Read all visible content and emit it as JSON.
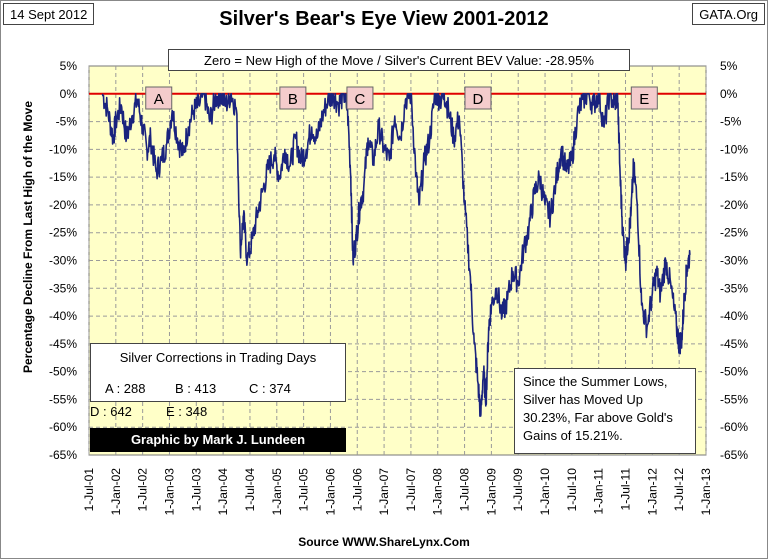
{
  "header": {
    "date": "14 Sept 2012",
    "site": "GATA.Org",
    "title": "Silver's Bear's Eye View 2001-2012",
    "subtitle": "Zero = New High of the Move / Silver's Current BEV Value: -28.95%"
  },
  "footer": {
    "source": "Source WWW.ShareLynx.Com"
  },
  "corrections": {
    "title": "Silver Corrections in Trading Days",
    "a": "A : 288",
    "b": "B : 413",
    "c": "C : 374",
    "d": "D : 642",
    "e": "E : 348",
    "credit": "Graphic by Mark J. Lundeen"
  },
  "note": {
    "line1": "Since the Summer Lows,",
    "line2": "Silver has Moved Up",
    "line3": "30.23%, Far above Gold's",
    "line4": "Gains of 15.21%."
  },
  "colors": {
    "plot_bg": "#ffffc8",
    "line": "#1a237e",
    "zero_line": "#e00000",
    "label_box": "#f4cccc"
  },
  "chart_data": {
    "type": "line",
    "title": "Silver's Bear's Eye View 2001-2012",
    "xlabel": "",
    "ylabel": "Percentage Decline From Last High of the Move",
    "ylim": [
      -65,
      5
    ],
    "y_ticks": [
      "5%",
      "0%",
      "-5%",
      "-10%",
      "-15%",
      "-20%",
      "-25%",
      "-30%",
      "-35%",
      "-40%",
      "-45%",
      "-50%",
      "-55%",
      "-60%",
      "-65%"
    ],
    "x_ticks": [
      "1-Jul-01",
      "1-Jan-02",
      "1-Jul-02",
      "1-Jan-03",
      "1-Jul-03",
      "1-Jan-04",
      "1-Jul-04",
      "1-Jan-05",
      "1-Jul-05",
      "1-Jan-06",
      "1-Jul-06",
      "1-Jan-07",
      "1-Jul-07",
      "1-Jan-08",
      "1-Jul-08",
      "1-Jan-09",
      "1-Jul-09",
      "1-Jan-10",
      "1-Jul-10",
      "1-Jan-11",
      "1-Jul-11",
      "1-Jan-12",
      "1-Jul-12",
      "1-Jan-13"
    ],
    "grid": true,
    "series": [
      {
        "name": "Silver BEV",
        "x": [
          2001.75,
          2001.85,
          2001.95,
          2002.0,
          2002.1,
          2002.2,
          2002.3,
          2002.4,
          2002.5,
          2002.58,
          2002.65,
          2002.75,
          2002.85,
          2002.95,
          2003.05,
          2003.15,
          2003.25,
          2003.35,
          2003.45,
          2003.55,
          2003.65,
          2003.75,
          2003.85,
          2003.95,
          2004.05,
          2004.15,
          2004.25,
          2004.32,
          2004.38,
          2004.45,
          2004.55,
          2004.65,
          2004.75,
          2004.85,
          2004.95,
          2005.05,
          2005.15,
          2005.25,
          2005.35,
          2005.45,
          2005.55,
          2005.65,
          2005.75,
          2005.85,
          2005.95,
          2006.05,
          2006.15,
          2006.25,
          2006.32,
          2006.38,
          2006.42,
          2006.48,
          2006.55,
          2006.62,
          2006.7,
          2006.8,
          2006.9,
          2007.0,
          2007.1,
          2007.2,
          2007.3,
          2007.4,
          2007.5,
          2007.6,
          2007.65,
          2007.75,
          2007.85,
          2007.95,
          2008.05,
          2008.12,
          2008.2,
          2008.3,
          2008.4,
          2008.5,
          2008.6,
          2008.68,
          2008.75,
          2008.8,
          2008.85,
          2008.9,
          2008.95,
          2009.0,
          2009.1,
          2009.2,
          2009.3,
          2009.4,
          2009.5,
          2009.6,
          2009.7,
          2009.8,
          2009.9,
          2010.0,
          2010.1,
          2010.2,
          2010.3,
          2010.4,
          2010.5,
          2010.6,
          2010.7,
          2010.8,
          2010.9,
          2011.0,
          2011.1,
          2011.2,
          2011.3,
          2011.35,
          2011.4,
          2011.45,
          2011.5,
          2011.55,
          2011.6,
          2011.65,
          2011.72,
          2011.8,
          2011.9,
          2012.0,
          2012.08,
          2012.15,
          2012.25,
          2012.35,
          2012.45,
          2012.5,
          2012.55,
          2012.6,
          2012.65,
          2012.7
        ],
        "values": [
          0,
          -3,
          -8,
          -5,
          -2,
          -8,
          -4,
          -1,
          -6,
          -10,
          -8,
          -14,
          -12,
          -9,
          -3,
          -8,
          -11,
          -6,
          -3,
          -2,
          0,
          -5,
          -1,
          0,
          -2,
          0,
          -3,
          -28,
          -22,
          -30,
          -26,
          -21,
          -17,
          -13,
          -11,
          -15,
          -10,
          -13,
          -8,
          -12,
          -10,
          -6,
          -8,
          -4,
          -1,
          0,
          -2,
          0,
          -3,
          -15,
          -30,
          -26,
          -20,
          -17,
          -8,
          -12,
          -6,
          -10,
          -12,
          -4,
          -8,
          -1,
          0,
          -15,
          -20,
          -12,
          -8,
          0,
          -1,
          0,
          -3,
          -8,
          -4,
          -20,
          -32,
          -45,
          -52,
          -58,
          -50,
          -55,
          -42,
          -38,
          -35,
          -40,
          -37,
          -32,
          -34,
          -28,
          -24,
          -18,
          -15,
          -20,
          -22,
          -16,
          -10,
          -14,
          -12,
          -4,
          -1,
          0,
          -2,
          0,
          -6,
          0,
          -2,
          0,
          -15,
          -25,
          -30,
          -26,
          -22,
          -13,
          -20,
          -38,
          -42,
          -36,
          -32,
          -36,
          -30,
          -35,
          -42,
          -45,
          -44,
          -36,
          -31,
          -29
        ]
      }
    ],
    "annotations": [
      "A",
      "B",
      "C",
      "D",
      "E"
    ]
  }
}
